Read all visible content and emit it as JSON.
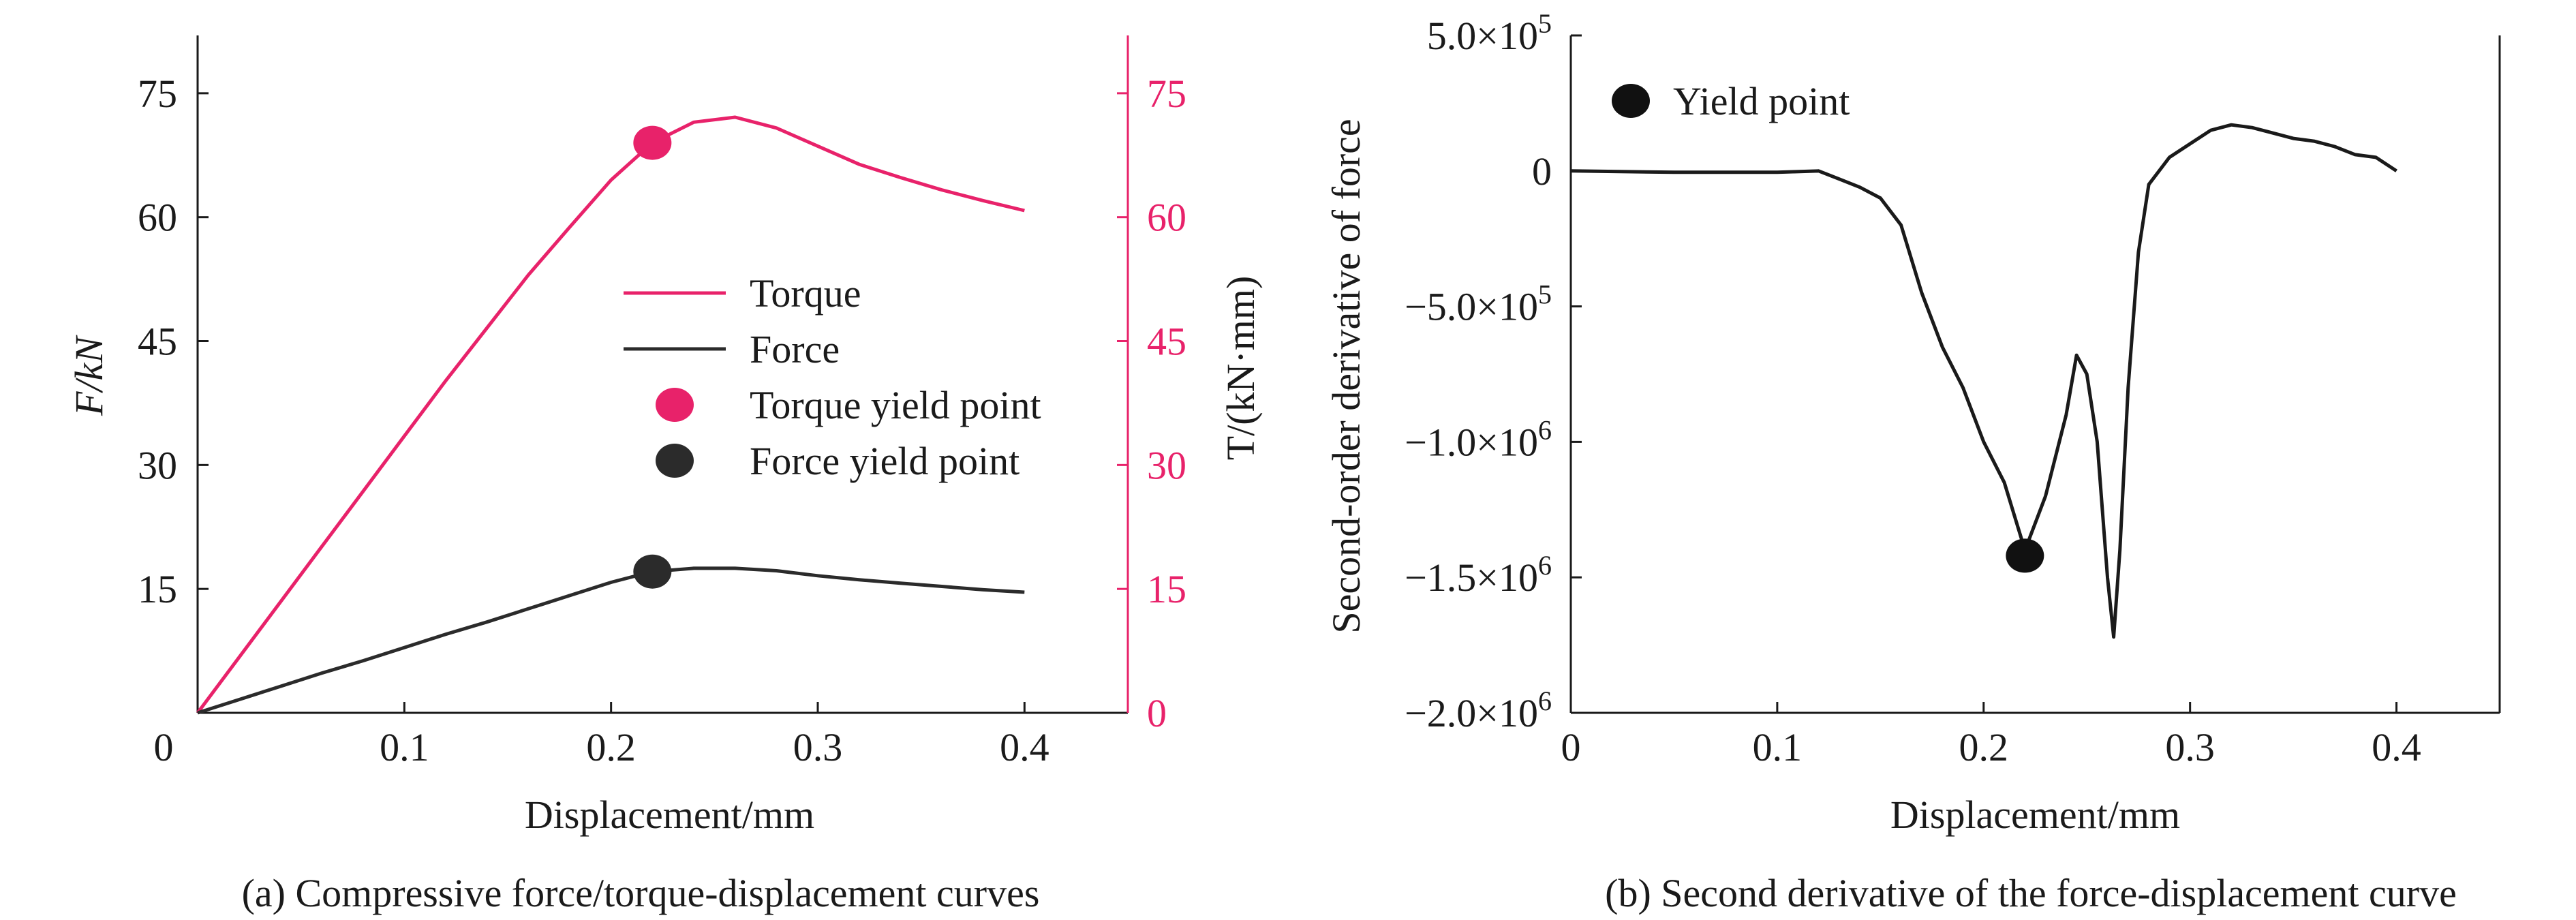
{
  "colors": {
    "torque": "#e8226a",
    "force": "#2b2b2b",
    "axis": "#1a1a1a"
  },
  "chart_data": [
    {
      "type": "line",
      "caption": "(a) Compressive force/torque-displacement curves",
      "xlabel": "Displacement/mm",
      "ylabel_left": "F/kN",
      "ylabel_right": "T/(kN·mm)",
      "xlim": [
        0,
        0.45
      ],
      "ylim_left": [
        0,
        82
      ],
      "ylim_right": [
        0,
        82
      ],
      "x_ticks": [
        0,
        0.1,
        0.2,
        0.3,
        0.4
      ],
      "x_tick_labels": [
        "0",
        "0.1",
        "0.2",
        "0.3",
        "0.4"
      ],
      "y_ticks_left": [
        15,
        30,
        45,
        60,
        75
      ],
      "y_ticks_right": [
        0,
        15,
        30,
        45,
        60,
        75
      ],
      "legend": [
        "Torque",
        "Force",
        "Torque yield point",
        "Force yield point"
      ],
      "legend_position": "center-right",
      "series": [
        {
          "name": "Torque",
          "axis": "right",
          "x": [
            0,
            0.02,
            0.04,
            0.06,
            0.08,
            0.1,
            0.12,
            0.14,
            0.16,
            0.18,
            0.2,
            0.22,
            0.24,
            0.26,
            0.28,
            0.3,
            0.32,
            0.34,
            0.36,
            0.38,
            0.4
          ],
          "y": [
            0,
            6.7,
            13.4,
            20.1,
            26.8,
            33.5,
            40.2,
            46.6,
            53.0,
            58.8,
            64.5,
            69.0,
            71.5,
            72.1,
            70.8,
            68.6,
            66.4,
            64.8,
            63.3,
            62.0,
            60.8
          ]
        },
        {
          "name": "Force",
          "axis": "left",
          "x": [
            0,
            0.02,
            0.04,
            0.06,
            0.08,
            0.1,
            0.12,
            0.14,
            0.16,
            0.18,
            0.2,
            0.22,
            0.24,
            0.26,
            0.28,
            0.3,
            0.32,
            0.34,
            0.36,
            0.38,
            0.4
          ],
          "y": [
            0,
            1.6,
            3.2,
            4.8,
            6.3,
            7.9,
            9.5,
            11.0,
            12.6,
            14.2,
            15.8,
            17.1,
            17.5,
            17.5,
            17.2,
            16.6,
            16.1,
            15.7,
            15.3,
            14.9,
            14.6
          ]
        }
      ],
      "points": [
        {
          "name": "Torque yield point",
          "axis": "right",
          "x": 0.22,
          "y": 69.0
        },
        {
          "name": "Force yield point",
          "axis": "left",
          "x": 0.22,
          "y": 17.1
        }
      ]
    },
    {
      "type": "line",
      "caption": "(b) Second derivative of the force-displacement curve",
      "xlabel": "Displacement/mm",
      "ylabel": "Second-order derivative of force",
      "xlim": [
        0,
        0.45
      ],
      "ylim": [
        -2000000,
        500000
      ],
      "x_ticks": [
        0,
        0.1,
        0.2,
        0.3,
        0.4
      ],
      "x_tick_labels": [
        "0",
        "0.1",
        "0.2",
        "0.3",
        "0.4"
      ],
      "y_ticks": [
        500000,
        0,
        -500000,
        -1000000,
        -1500000,
        -2000000
      ],
      "y_tick_labels": [
        {
          "mantissa": "5.0×10",
          "exp": "5"
        },
        {
          "mantissa": "0",
          "exp": ""
        },
        {
          "mantissa": "−5.0×10",
          "exp": "5"
        },
        {
          "mantissa": "−1.0×10",
          "exp": "6"
        },
        {
          "mantissa": "−1.5×10",
          "exp": "6"
        },
        {
          "mantissa": "−2.0×10",
          "exp": "6"
        }
      ],
      "legend": [
        "Yield point"
      ],
      "legend_position": "top-left",
      "series": [
        {
          "name": "",
          "x": [
            0,
            0.05,
            0.1,
            0.12,
            0.13,
            0.14,
            0.15,
            0.16,
            0.17,
            0.18,
            0.19,
            0.2,
            0.21,
            0.22,
            0.23,
            0.24,
            0.245,
            0.25,
            0.255,
            0.26,
            0.263,
            0.266,
            0.27,
            0.275,
            0.28,
            0.29,
            0.3,
            0.31,
            0.32,
            0.33,
            0.34,
            0.35,
            0.36,
            0.37,
            0.38,
            0.39,
            0.4
          ],
          "y": [
            0,
            -5000,
            -5000,
            0,
            -30000,
            -60000,
            -100000,
            -200000,
            -450000,
            -650000,
            -800000,
            -1000000,
            -1150000,
            -1400000,
            -1200000,
            -900000,
            -680000,
            -750000,
            -1000000,
            -1500000,
            -1720000,
            -1400000,
            -800000,
            -300000,
            -50000,
            50000,
            100000,
            150000,
            170000,
            160000,
            140000,
            120000,
            110000,
            90000,
            60000,
            50000,
            0
          ]
        }
      ],
      "points": [
        {
          "name": "Yield point",
          "x": 0.22,
          "y": -1420000
        }
      ]
    }
  ]
}
